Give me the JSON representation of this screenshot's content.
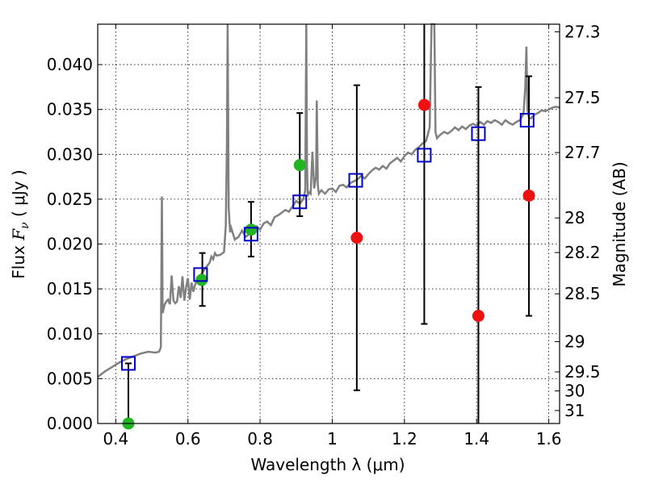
{
  "chart_data": {
    "type": "scatter",
    "xlabel": "Wavelength  λ (μm)",
    "ylabel_prefix": "Flux  ",
    "ylabel_symbol": "F",
    "ylabel_subscript": "ν",
    "ylabel_suffix": "  ( μJy )",
    "right_ylabel": "Magnitude (AB)",
    "xlim": [
      0.35,
      1.63
    ],
    "ylim": [
      0.0,
      0.0445
    ],
    "grid": true,
    "x_ticks": [
      0.4,
      0.6,
      0.8,
      1.0,
      1.2,
      1.4,
      1.6
    ],
    "x_tick_labels": [
      "0.4",
      "0.6",
      "0.8",
      "1",
      "1.2",
      "1.4",
      "1.6"
    ],
    "y_ticks": [
      0.0,
      0.005,
      0.01,
      0.015,
      0.02,
      0.025,
      0.03,
      0.035,
      0.04
    ],
    "y_tick_labels": [
      "0.000",
      "0.005",
      "0.010",
      "0.015",
      "0.020",
      "0.025",
      "0.030",
      "0.035",
      "0.040"
    ],
    "mag_ticks": [
      27.3,
      27.5,
      27.7,
      28,
      28.2,
      28.5,
      29,
      29.5,
      30,
      31
    ],
    "mag_tick_labels": [
      "27.3",
      "27.5",
      "27.7",
      "28",
      "28.2",
      "28.5",
      "29",
      "29.5",
      "30",
      "31"
    ],
    "colors": {
      "spectrum": "#808080",
      "model_box": "#0000cc",
      "detection": "#22b422",
      "nondetection": "#ee1111",
      "errorbar": "#000000",
      "grid": "#000000"
    },
    "spectrum": {
      "x": [
        0.35,
        0.37,
        0.39,
        0.41,
        0.43,
        0.45,
        0.47,
        0.49,
        0.51,
        0.52,
        0.525,
        0.528,
        0.53,
        0.535,
        0.54,
        0.545,
        0.55,
        0.555,
        0.56,
        0.565,
        0.57,
        0.575,
        0.58,
        0.585,
        0.59,
        0.595,
        0.6,
        0.605,
        0.61,
        0.615,
        0.62,
        0.63,
        0.64,
        0.65,
        0.66,
        0.665,
        0.67,
        0.675,
        0.68,
        0.69,
        0.7,
        0.705,
        0.708,
        0.71,
        0.713,
        0.717,
        0.72,
        0.73,
        0.74,
        0.75,
        0.76,
        0.77,
        0.78,
        0.79,
        0.8,
        0.81,
        0.82,
        0.83,
        0.84,
        0.85,
        0.86,
        0.87,
        0.88,
        0.89,
        0.9,
        0.91,
        0.92,
        0.925,
        0.928,
        0.93,
        0.932,
        0.935,
        0.94,
        0.945,
        0.95,
        0.955,
        0.957,
        0.96,
        0.963,
        0.966,
        0.97,
        0.98,
        0.99,
        1.0,
        1.01,
        1.02,
        1.03,
        1.04,
        1.05,
        1.06,
        1.07,
        1.08,
        1.09,
        1.1,
        1.11,
        1.12,
        1.13,
        1.14,
        1.15,
        1.16,
        1.17,
        1.18,
        1.19,
        1.2,
        1.21,
        1.22,
        1.23,
        1.24,
        1.25,
        1.26,
        1.27,
        1.275,
        1.28,
        1.283,
        1.286,
        1.29,
        1.295,
        1.3,
        1.31,
        1.32,
        1.33,
        1.34,
        1.35,
        1.36,
        1.37,
        1.38,
        1.39,
        1.4,
        1.41,
        1.42,
        1.43,
        1.44,
        1.45,
        1.46,
        1.47,
        1.48,
        1.49,
        1.5,
        1.51,
        1.52,
        1.53,
        1.535,
        1.538,
        1.541,
        1.545,
        1.55,
        1.56,
        1.57,
        1.58,
        1.59,
        1.6,
        1.61,
        1.62,
        1.63
      ],
      "y": [
        0.0052,
        0.0058,
        0.0063,
        0.0068,
        0.0072,
        0.0075,
        0.0078,
        0.008,
        0.0079,
        0.008,
        0.0085,
        0.0253,
        0.0123,
        0.0132,
        0.0136,
        0.0138,
        0.0133,
        0.0165,
        0.0137,
        0.0134,
        0.0136,
        0.0153,
        0.014,
        0.0164,
        0.0137,
        0.0152,
        0.0162,
        0.0138,
        0.0157,
        0.0147,
        0.0155,
        0.0163,
        0.0168,
        0.0174,
        0.0179,
        0.0186,
        0.0183,
        0.019,
        0.0187,
        0.0188,
        0.0191,
        0.022,
        0.031,
        0.0445,
        0.024,
        0.0213,
        0.0218,
        0.0205,
        0.0208,
        0.0215,
        0.0208,
        0.0211,
        0.0217,
        0.022,
        0.0216,
        0.0223,
        0.0225,
        0.0221,
        0.023,
        0.0232,
        0.0235,
        0.0238,
        0.0236,
        0.0242,
        0.0248,
        0.0245,
        0.025,
        0.026,
        0.0445,
        0.029,
        0.0253,
        0.0258,
        0.0256,
        0.0303,
        0.0262,
        0.0275,
        0.036,
        0.0265,
        0.0256,
        0.0258,
        0.026,
        0.0256,
        0.0261,
        0.0262,
        0.0258,
        0.0265,
        0.0266,
        0.0263,
        0.0268,
        0.027,
        0.0272,
        0.0276,
        0.0273,
        0.0278,
        0.0282,
        0.0285,
        0.0283,
        0.0287,
        0.0284,
        0.029,
        0.0293,
        0.0296,
        0.0292,
        0.0298,
        0.0302,
        0.03,
        0.0305,
        0.0308,
        0.0312,
        0.0315,
        0.033,
        0.0445,
        0.0445,
        0.0445,
        0.0325,
        0.0318,
        0.032,
        0.0322,
        0.0325,
        0.0323,
        0.0326,
        0.033,
        0.0327,
        0.0331,
        0.0328,
        0.0332,
        0.0334,
        0.0332,
        0.0336,
        0.0333,
        0.0337,
        0.0335,
        0.0338,
        0.0336,
        0.0333,
        0.0338,
        0.0335,
        0.0333,
        0.0336,
        0.0338,
        0.0345,
        0.0375,
        0.042,
        0.035,
        0.0341,
        0.034,
        0.0344,
        0.0346,
        0.0349,
        0.0348,
        0.035,
        0.0352,
        0.0353,
        0.0352
      ]
    },
    "model_boxes": {
      "x": [
        0.435,
        0.635,
        0.775,
        0.91,
        1.065,
        1.255,
        1.405,
        1.54
      ],
      "y": [
        0.0067,
        0.0166,
        0.0211,
        0.0247,
        0.0271,
        0.0299,
        0.0323,
        0.0338
      ]
    },
    "detections": {
      "x": [
        0.435,
        0.638,
        0.775,
        0.91
      ],
      "y": [
        0.0,
        0.016,
        0.0216,
        0.0288
      ]
    },
    "nondetections": {
      "x": [
        1.068,
        1.255,
        1.405,
        1.545
      ],
      "y": [
        0.0207,
        0.0355,
        0.012,
        0.0254
      ]
    },
    "error_bars": [
      {
        "x": 0.435,
        "low": 0.0,
        "high": 0.0067
      },
      {
        "x": 0.64,
        "low": 0.0131,
        "high": 0.019
      },
      {
        "x": 0.775,
        "low": 0.0186,
        "high": 0.0247
      },
      {
        "x": 0.91,
        "low": 0.0231,
        "high": 0.0346
      },
      {
        "x": 1.068,
        "low": 0.0037,
        "high": 0.0377
      },
      {
        "x": 1.255,
        "low": 0.0111,
        "high": 0.0445
      },
      {
        "x": 1.405,
        "low": 0.0,
        "high": 0.0375
      },
      {
        "x": 1.545,
        "low": 0.012,
        "high": 0.0387
      }
    ]
  }
}
